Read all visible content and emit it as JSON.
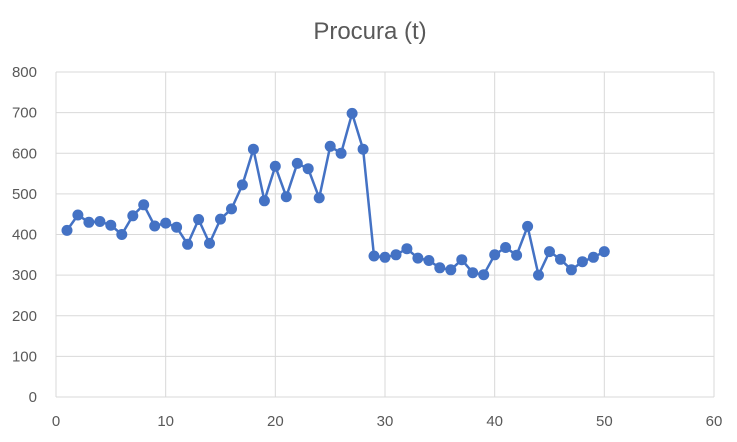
{
  "chart_data": {
    "type": "scatter",
    "title": "Procura (t)",
    "xlim": [
      0,
      60
    ],
    "ylim": [
      0,
      800
    ],
    "xticks": [
      0,
      10,
      20,
      30,
      40,
      50,
      60
    ],
    "yticks": [
      0,
      100,
      200,
      300,
      400,
      500,
      600,
      700,
      800
    ],
    "grid": true,
    "series_color": "#4472C4",
    "series": [
      {
        "x": [
          1,
          2,
          3,
          4,
          5,
          6,
          7,
          8,
          9,
          10,
          11,
          12,
          13,
          14,
          15,
          16,
          17,
          18,
          19,
          20,
          21,
          22,
          23,
          24,
          25,
          26,
          27,
          28,
          29,
          30,
          31,
          32,
          33,
          34,
          35,
          36,
          37,
          38,
          39,
          40,
          41,
          42,
          43,
          44,
          45,
          46,
          47,
          48,
          49,
          50
        ],
        "values": [
          410,
          448,
          430,
          432,
          423,
          400,
          446,
          473,
          421,
          428,
          418,
          376,
          437,
          378,
          438,
          463,
          522,
          610,
          483,
          568,
          493,
          575,
          562,
          490,
          617,
          600,
          698,
          610,
          347,
          344,
          350,
          365,
          342,
          336,
          318,
          313,
          338,
          306,
          301,
          350,
          368,
          349,
          420,
          300,
          358,
          339,
          313,
          333,
          344,
          358
        ]
      }
    ]
  }
}
